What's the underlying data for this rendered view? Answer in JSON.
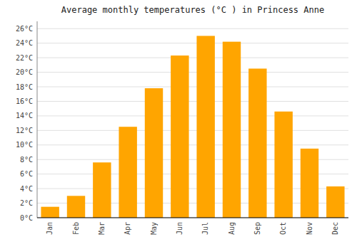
{
  "chart_data": {
    "type": "bar",
    "title": "Average monthly temperatures (°C ) in Princess Anne",
    "categories": [
      "Jan",
      "Feb",
      "Mar",
      "Apr",
      "May",
      "Jun",
      "Jul",
      "Aug",
      "Sep",
      "Oct",
      "Nov",
      "Dec"
    ],
    "values": [
      1.5,
      3.0,
      7.6,
      12.5,
      17.8,
      22.3,
      25.0,
      24.2,
      20.5,
      14.6,
      9.5,
      4.3
    ],
    "color": "#FFA500",
    "ylim": [
      0,
      27
    ],
    "yticks": [
      {
        "value": 0,
        "label": "0°C"
      },
      {
        "value": 2,
        "label": "2°C"
      },
      {
        "value": 4,
        "label": "4°C"
      },
      {
        "value": 6,
        "label": "6°C"
      },
      {
        "value": 8,
        "label": "8°C"
      },
      {
        "value": 10,
        "label": "10°C"
      },
      {
        "value": 12,
        "label": "12°C"
      },
      {
        "value": 14,
        "label": "14°C"
      },
      {
        "value": 16,
        "label": "16°C"
      },
      {
        "value": 18,
        "label": "18°C"
      },
      {
        "value": 20,
        "label": "20°C"
      },
      {
        "value": 22,
        "label": "22°C"
      },
      {
        "value": 24,
        "label": "24°C"
      },
      {
        "value": 26,
        "label": "26°C"
      }
    ],
    "grid": true
  }
}
